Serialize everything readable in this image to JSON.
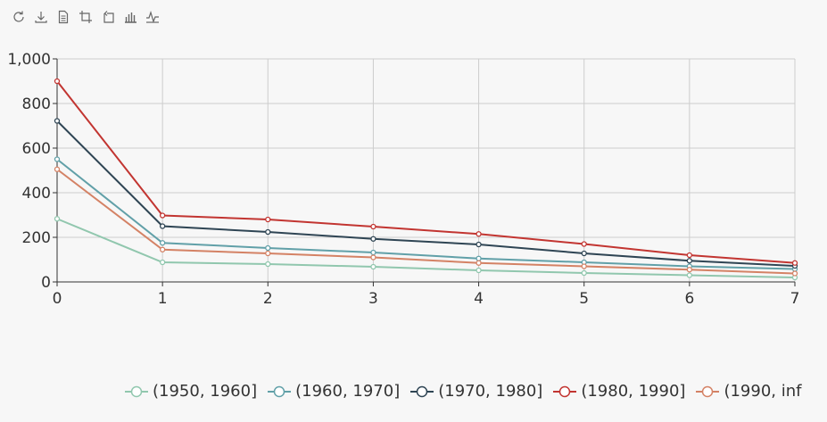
{
  "toolbox": [
    {
      "name": "restore-icon"
    },
    {
      "name": "save-as-image-icon"
    },
    {
      "name": "data-view-icon"
    },
    {
      "name": "data-zoom-icon"
    },
    {
      "name": "data-zoom-reset-icon"
    },
    {
      "name": "bar-chart-icon"
    },
    {
      "name": "line-chart-icon"
    }
  ],
  "chart_data": {
    "type": "line",
    "x": [
      0,
      1,
      2,
      3,
      4,
      5,
      6,
      7
    ],
    "xlim": [
      0,
      7
    ],
    "ylim": [
      0,
      1000
    ],
    "yticks": [
      "0",
      "200",
      "400",
      "600",
      "800",
      "1,000"
    ],
    "xticks": [
      "0",
      "1",
      "2",
      "3",
      "4",
      "5",
      "6",
      "7"
    ],
    "grid": true,
    "legend_position": "bottom",
    "series": [
      {
        "name": "(1950, 1960]",
        "color": "#91c7ae",
        "values": [
          283,
          88,
          80,
          68,
          52,
          40,
          30,
          20
        ]
      },
      {
        "name": "(1960, 1970]",
        "color": "#61a0a8",
        "values": [
          550,
          175,
          152,
          132,
          105,
          88,
          70,
          58
        ]
      },
      {
        "name": "(1970, 1980]",
        "color": "#2f4554",
        "values": [
          722,
          250,
          224,
          193,
          168,
          128,
          95,
          72
        ]
      },
      {
        "name": "(1980, 1990]",
        "color": "#c23531",
        "values": [
          900,
          298,
          280,
          248,
          215,
          170,
          120,
          85
        ]
      },
      {
        "name": "(1990, inf",
        "color": "#d48265",
        "values": [
          505,
          145,
          128,
          110,
          85,
          70,
          55,
          38
        ]
      }
    ]
  }
}
